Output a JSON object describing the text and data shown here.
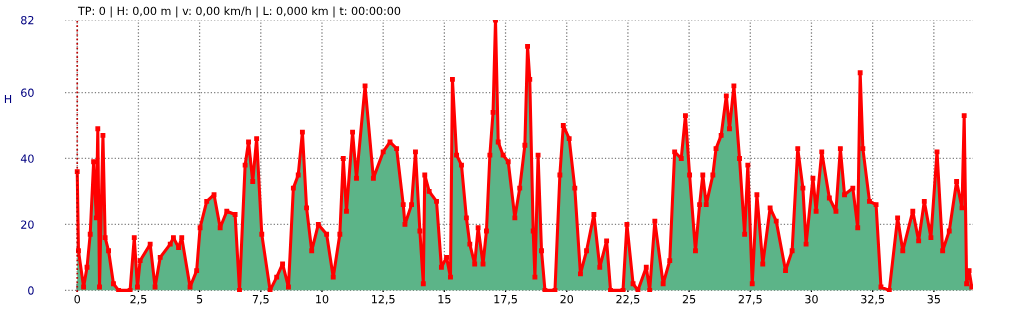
{
  "chart_data": {
    "type": "area",
    "ylabel": "H",
    "annotations": [
      "TP: 0 | H: 0,00 m | v: 0,00 km/h | L: 0,000 km | t: 00:00:00"
    ],
    "xlim": [
      -0.5,
      36.6
    ],
    "ylim": [
      -0.5,
      82
    ],
    "xticks": [
      0,
      {
        "value": 2.5,
        "label": "2,5"
      },
      5,
      {
        "value": 7.5,
        "label": "7,5"
      },
      10,
      {
        "value": 12.5,
        "label": "12,5"
      },
      15,
      {
        "value": 17.5,
        "label": "17,5"
      },
      20,
      {
        "value": 22.5,
        "label": "22,5"
      },
      25,
      {
        "value": 27.5,
        "label": "27,5"
      },
      30,
      {
        "value": 32.5,
        "label": "32,5"
      },
      35
    ],
    "yticks": [
      0,
      20,
      40,
      60,
      82
    ],
    "grid": true,
    "marker": "square",
    "line_style": "solid",
    "ref_lines": [
      {
        "axis": "x",
        "value": 0,
        "color": "#c00000",
        "line_style": "dotted"
      }
    ],
    "series": [
      {
        "color": "#5cb488",
        "x": [
          0,
          0.05,
          0.26,
          0.4,
          0.53,
          0.67,
          0.78,
          0.84,
          0.91,
          1.05,
          1.14,
          1.28,
          1.48,
          1.69,
          2.16,
          2.33,
          2.46,
          2.57,
          2.98,
          3.18,
          3.39,
          3.8,
          3.93,
          4.14,
          4.27,
          4.61,
          4.88,
          5.02,
          5.29,
          5.59,
          5.84,
          6.11,
          6.45,
          6.63,
          6.86,
          7.0,
          7.17,
          7.33,
          7.54,
          7.88,
          8.15,
          8.39,
          8.63,
          8.83,
          9.03,
          9.2,
          9.37,
          9.58,
          9.85,
          10.19,
          10.46,
          10.73,
          10.87,
          11.0,
          11.25,
          11.41,
          11.76,
          12.1,
          12.5,
          12.78,
          13.05,
          13.32,
          13.39,
          13.66,
          13.82,
          14.0,
          14.14,
          14.2,
          14.38,
          14.68,
          14.88,
          15.09,
          15.25,
          15.33,
          15.5,
          15.7,
          15.9,
          16.04,
          16.24,
          16.38,
          16.58,
          16.72,
          16.86,
          16.99,
          17.09,
          17.2,
          17.4,
          17.61,
          17.88,
          18.08,
          18.29,
          18.4,
          18.49,
          18.63,
          18.7,
          18.83,
          18.97,
          19.11,
          19.52,
          19.72,
          19.86,
          20.1,
          20.33,
          20.56,
          20.81,
          21.11,
          21.35,
          21.63,
          21.79,
          22.3,
          22.46,
          22.71,
          22.91,
          23.25,
          23.39,
          23.6,
          23.94,
          24.21,
          24.41,
          24.68,
          24.85,
          25.02,
          25.26,
          25.43,
          25.56,
          25.7,
          25.97,
          26.1,
          26.31,
          26.52,
          26.65,
          26.83,
          27.06,
          27.27,
          27.4,
          27.58,
          27.77,
          28.01,
          28.31,
          28.56,
          28.94,
          29.21,
          29.44,
          29.65,
          29.78,
          30.06,
          30.19,
          30.42,
          30.73,
          31.0,
          31.18,
          31.35,
          31.69,
          31.89,
          31.99,
          32.1,
          32.37,
          32.64,
          32.84,
          33.18,
          33.52,
          33.73,
          34.14,
          34.38,
          34.61,
          34.88,
          35.13,
          35.36,
          35.63,
          35.93,
          36.15,
          36.24,
          36.34,
          36.44,
          36.55
        ],
        "values": [
          36,
          12,
          1,
          7,
          17,
          39,
          22,
          49,
          1,
          47,
          16,
          12,
          2,
          0,
          0,
          16,
          1,
          9,
          14,
          1,
          10,
          14,
          16,
          13,
          16,
          1,
          6,
          19,
          27,
          29,
          19,
          24,
          23,
          0,
          38,
          45,
          33,
          46,
          17,
          0,
          4,
          8,
          1,
          31,
          35,
          48,
          25,
          12,
          20,
          17,
          4,
          17,
          40,
          24,
          48,
          34,
          62,
          34,
          42,
          45,
          43,
          26,
          20,
          26,
          42,
          18,
          2,
          35,
          30,
          27,
          7,
          10,
          4,
          64,
          41,
          38,
          22,
          14,
          8,
          19,
          8,
          18,
          41,
          54,
          82,
          45,
          41,
          39,
          22,
          31,
          44,
          74,
          64,
          18,
          4,
          41,
          12,
          0,
          0,
          35,
          50,
          46,
          31,
          5,
          12,
          23,
          7,
          15,
          0,
          0,
          20,
          2,
          0,
          7,
          0,
          21,
          2,
          9,
          42,
          40,
          53,
          35,
          12,
          26,
          35,
          26,
          35,
          43,
          47,
          59,
          49,
          62,
          40,
          17,
          38,
          2,
          29,
          8,
          25,
          21,
          6,
          12,
          43,
          31,
          14,
          34,
          24,
          42,
          28,
          24,
          43,
          29,
          31,
          19,
          66,
          43,
          27,
          26,
          1,
          0,
          22,
          12,
          24,
          15,
          27,
          16,
          42,
          12,
          18,
          33,
          25,
          53,
          2,
          6,
          1
        ]
      }
    ]
  }
}
